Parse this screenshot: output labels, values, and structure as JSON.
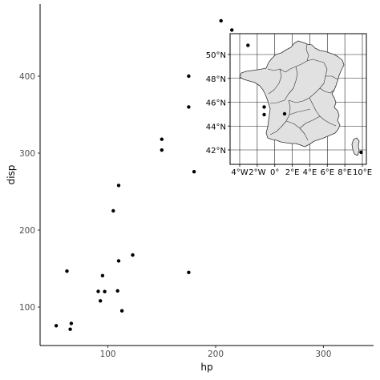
{
  "chart_data": [
    {
      "type": "scatter",
      "xlabel": "hp",
      "ylabel": "disp",
      "xlim": [
        40,
        340
      ],
      "ylim": [
        55,
        480
      ],
      "x_ticks": [
        100,
        200,
        300
      ],
      "y_ticks": [
        100,
        200,
        300,
        400
      ],
      "x_tick_labels": [
        "100",
        "200",
        "300"
      ],
      "y_tick_labels": [
        "100",
        "200",
        "300",
        "400"
      ],
      "grid": false,
      "point_color": "#000000",
      "points": [
        {
          "x": 52,
          "y": 75.7
        },
        {
          "x": 62,
          "y": 146.7
        },
        {
          "x": 65,
          "y": 71.1
        },
        {
          "x": 66,
          "y": 78.7
        },
        {
          "x": 91,
          "y": 120.3
        },
        {
          "x": 93,
          "y": 108
        },
        {
          "x": 95,
          "y": 140.8
        },
        {
          "x": 97,
          "y": 120.1
        },
        {
          "x": 105,
          "y": 225
        },
        {
          "x": 109,
          "y": 121
        },
        {
          "x": 110,
          "y": 160
        },
        {
          "x": 110,
          "y": 258
        },
        {
          "x": 113,
          "y": 95.1
        },
        {
          "x": 123,
          "y": 167.6
        },
        {
          "x": 150,
          "y": 304
        },
        {
          "x": 150,
          "y": 318
        },
        {
          "x": 175,
          "y": 360
        },
        {
          "x": 175,
          "y": 400
        },
        {
          "x": 175,
          "y": 145
        },
        {
          "x": 180,
          "y": 275.8
        },
        {
          "x": 205,
          "y": 472
        },
        {
          "x": 215,
          "y": 460
        },
        {
          "x": 230,
          "y": 440
        },
        {
          "x": 245,
          "y": 350
        },
        {
          "x": 245,
          "y": 360
        },
        {
          "x": 264,
          "y": 351
        },
        {
          "x": 335,
          "y": 301
        }
      ]
    },
    {
      "type": "map",
      "region": "France",
      "fill_color": "#e1e1e1",
      "border_color": "#333333",
      "xlim": [
        -5.6,
        10.3
      ],
      "ylim": [
        40.8,
        51.6
      ],
      "lat_ticks": [
        42,
        44,
        46,
        48,
        50
      ],
      "lat_tick_labels": [
        "42°N",
        "44°N",
        "46°N",
        "48°N",
        "50°N"
      ],
      "lon_ticks": [
        -4,
        -2,
        0,
        2,
        4,
        6,
        8,
        10
      ],
      "lon_tick_labels": [
        "4°W",
        "2°W",
        "0°",
        "2°E",
        "4°E",
        "6°E",
        "8°E",
        "10°E"
      ],
      "grid": true
    }
  ]
}
